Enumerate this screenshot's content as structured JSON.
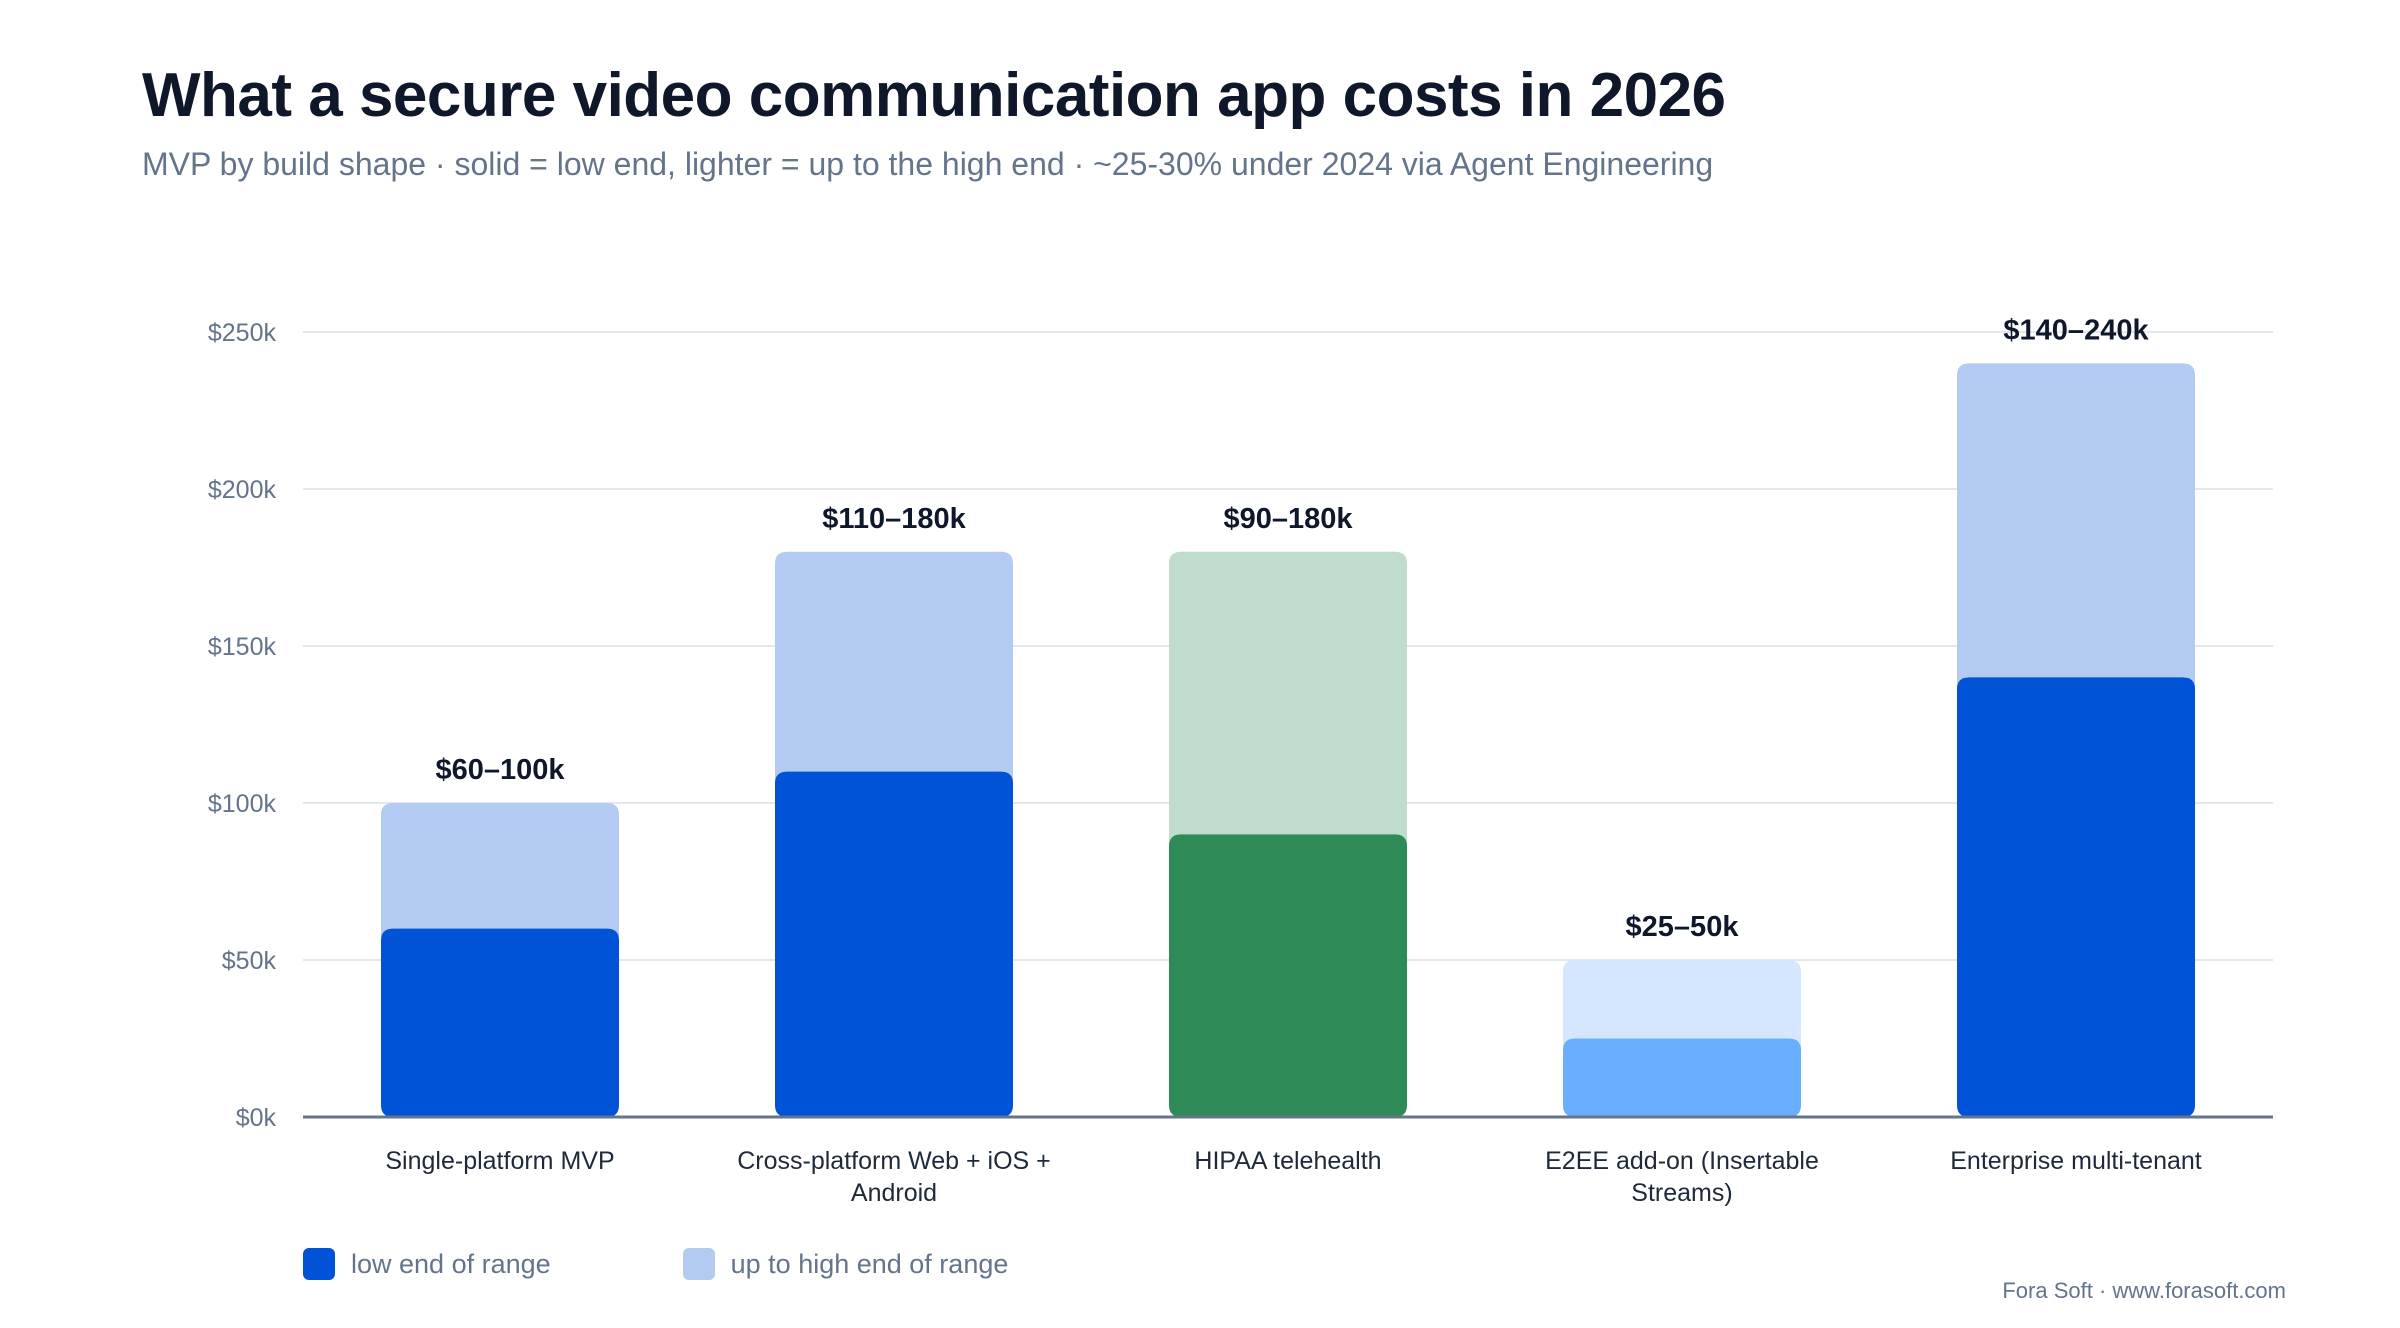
{
  "title": "What a secure video communication app costs in 2026",
  "subtitle": "MVP by build shape · solid = low end, lighter = up to the high end · ~25-30% under 2024 via Agent Engineering",
  "footer": "Fora Soft · www.forasoft.com",
  "legend": [
    {
      "label": "low end of range",
      "color": "#0052d6"
    },
    {
      "label": "up to high end of range",
      "color": "#b3caf2"
    }
  ],
  "chart_data": {
    "type": "bar",
    "stacked": true,
    "categories": [
      "Single-platform MVP",
      "Cross-platform Web + iOS + Android",
      "HIPAA telehealth",
      "E2EE add-on (Insertable Streams)",
      "Enterprise multi-tenant"
    ],
    "category_lines": [
      [
        "Single-platform MVP"
      ],
      [
        "Cross-platform Web + iOS +",
        "Android"
      ],
      [
        "HIPAA telehealth"
      ],
      [
        "E2EE add-on (Insertable",
        "Streams)"
      ],
      [
        "Enterprise multi-tenant"
      ]
    ],
    "low": [
      60,
      110,
      90,
      25,
      140
    ],
    "high": [
      100,
      180,
      180,
      50,
      240
    ],
    "range_labels": [
      "$60–100k",
      "$110–180k",
      "$90–180k",
      "$25–50k",
      "$140–240k"
    ],
    "low_colors": [
      "#0052d6",
      "#0052d6",
      "#2e8b57",
      "#6aaeff",
      "#0052d6"
    ],
    "high_colors": [
      "#b3caf2",
      "#b3caf2",
      "#c0dccd",
      "#d5e7ff",
      "#b3caf2"
    ],
    "y_ticks": [
      0,
      50,
      100,
      150,
      200,
      250
    ],
    "y_tick_labels": [
      "$0k",
      "$50k",
      "$100k",
      "$150k",
      "$200k",
      "$250k"
    ],
    "ylim": [
      0,
      250
    ],
    "grid": true,
    "legend_position": "bottom-left"
  }
}
